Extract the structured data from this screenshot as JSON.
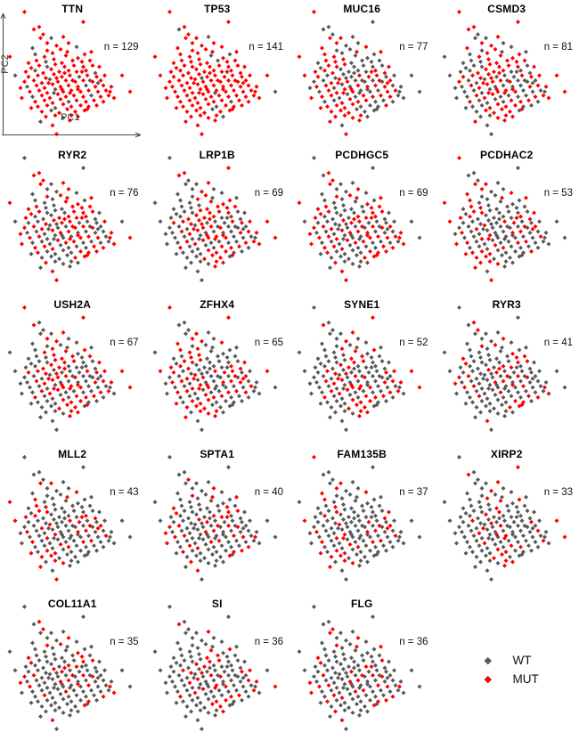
{
  "chart_data": {
    "type": "scatter",
    "xlabel": "PC1",
    "ylabel": "PC2",
    "grid": "off",
    "marker": "diamond",
    "legend_position": "bottom-right",
    "legend": [
      {
        "label": "WT",
        "color": "#595959"
      },
      {
        "label": "MUT",
        "color": "#FF0000"
      }
    ],
    "mut_stride": 7,
    "panels": [
      {
        "gene": "TTN",
        "n": 129,
        "n_label": "n = 129",
        "mut_seed": 0
      },
      {
        "gene": "TP53",
        "n": 141,
        "n_label": "n = 141",
        "mut_seed": 37
      },
      {
        "gene": "MUC16",
        "n": 77,
        "n_label": "n = 77",
        "mut_seed": 74
      },
      {
        "gene": "CSMD3",
        "n": 81,
        "n_label": "n = 81",
        "mut_seed": 111
      },
      {
        "gene": "RYR2",
        "n": 76,
        "n_label": "n = 76",
        "mut_seed": 148
      },
      {
        "gene": "LRP1B",
        "n": 69,
        "n_label": "n = 69",
        "mut_seed": 35
      },
      {
        "gene": "PCDHGC5",
        "n": 69,
        "n_label": "n = 69",
        "mut_seed": 72
      },
      {
        "gene": "PCDHAC2",
        "n": 53,
        "n_label": "n = 53",
        "mut_seed": 109
      },
      {
        "gene": "USH2A",
        "n": 67,
        "n_label": "n = 67",
        "mut_seed": 146
      },
      {
        "gene": "ZFHX4",
        "n": 65,
        "n_label": "n = 65",
        "mut_seed": 33
      },
      {
        "gene": "SYNE1",
        "n": 52,
        "n_label": "n = 52",
        "mut_seed": 70
      },
      {
        "gene": "RYR3",
        "n": 41,
        "n_label": "n = 41",
        "mut_seed": 107
      },
      {
        "gene": "MLL2",
        "n": 43,
        "n_label": "n = 43",
        "mut_seed": 144
      },
      {
        "gene": "SPTA1",
        "n": 40,
        "n_label": "n = 40",
        "mut_seed": 31
      },
      {
        "gene": "FAM135B",
        "n": 37,
        "n_label": "n = 37",
        "mut_seed": 68
      },
      {
        "gene": "XIRP2",
        "n": 33,
        "n_label": "n = 33",
        "mut_seed": 105
      },
      {
        "gene": "COL11A1",
        "n": 35,
        "n_label": "n = 35",
        "mut_seed": 142
      },
      {
        "gene": "SI",
        "n": 36,
        "n_label": "n = 36",
        "mut_seed": 29
      },
      {
        "gene": "FLG",
        "n": 36,
        "n_label": "n = 36",
        "mut_seed": 66
      }
    ],
    "points": [
      [
        0.13,
        0.01
      ],
      [
        0.57,
        0.09
      ],
      [
        0.2,
        0.15
      ],
      [
        0.24,
        0.13
      ],
      [
        0.27,
        0.19
      ],
      [
        0.25,
        0.22
      ],
      [
        0.33,
        0.22
      ],
      [
        0.3,
        0.26
      ],
      [
        0.37,
        0.28
      ],
      [
        0.42,
        0.21
      ],
      [
        0.4,
        0.31
      ],
      [
        0.46,
        0.26
      ],
      [
        0.02,
        0.37
      ],
      [
        0.06,
        0.52
      ],
      [
        0.69,
        0.45
      ],
      [
        0.86,
        0.52
      ],
      [
        0.92,
        0.65
      ],
      [
        0.8,
        0.7
      ],
      [
        0.34,
        0.92
      ],
      [
        0.37,
        0.99
      ],
      [
        0.21,
        0.35
      ],
      [
        0.28,
        0.37
      ],
      [
        0.34,
        0.34
      ],
      [
        0.44,
        0.36
      ],
      [
        0.53,
        0.38
      ],
      [
        0.16,
        0.42
      ],
      [
        0.22,
        0.4
      ],
      [
        0.29,
        0.41
      ],
      [
        0.35,
        0.39
      ],
      [
        0.41,
        0.42
      ],
      [
        0.49,
        0.4
      ],
      [
        0.56,
        0.41
      ],
      [
        0.18,
        0.46
      ],
      [
        0.24,
        0.44
      ],
      [
        0.3,
        0.45
      ],
      [
        0.36,
        0.43
      ],
      [
        0.43,
        0.45
      ],
      [
        0.5,
        0.44
      ],
      [
        0.57,
        0.45
      ],
      [
        0.64,
        0.44
      ],
      [
        0.14,
        0.49
      ],
      [
        0.21,
        0.48
      ],
      [
        0.27,
        0.5
      ],
      [
        0.33,
        0.47
      ],
      [
        0.39,
        0.49
      ],
      [
        0.46,
        0.48
      ],
      [
        0.52,
        0.49
      ],
      [
        0.59,
        0.48
      ],
      [
        0.66,
        0.5
      ],
      [
        0.16,
        0.53
      ],
      [
        0.23,
        0.52
      ],
      [
        0.29,
        0.54
      ],
      [
        0.35,
        0.51
      ],
      [
        0.41,
        0.53
      ],
      [
        0.47,
        0.52
      ],
      [
        0.54,
        0.53
      ],
      [
        0.6,
        0.52
      ],
      [
        0.67,
        0.53
      ],
      [
        0.73,
        0.52
      ],
      [
        0.13,
        0.57
      ],
      [
        0.2,
        0.56
      ],
      [
        0.26,
        0.58
      ],
      [
        0.32,
        0.55
      ],
      [
        0.38,
        0.57
      ],
      [
        0.44,
        0.56
      ],
      [
        0.51,
        0.57
      ],
      [
        0.57,
        0.56
      ],
      [
        0.64,
        0.57
      ],
      [
        0.7,
        0.56
      ],
      [
        0.15,
        0.61
      ],
      [
        0.22,
        0.6
      ],
      [
        0.28,
        0.62
      ],
      [
        0.34,
        0.59
      ],
      [
        0.4,
        0.61
      ],
      [
        0.46,
        0.6
      ],
      [
        0.53,
        0.61
      ],
      [
        0.59,
        0.6
      ],
      [
        0.66,
        0.61
      ],
      [
        0.72,
        0.6
      ],
      [
        0.78,
        0.61
      ],
      [
        0.17,
        0.65
      ],
      [
        0.24,
        0.64
      ],
      [
        0.3,
        0.66
      ],
      [
        0.36,
        0.63
      ],
      [
        0.42,
        0.65
      ],
      [
        0.48,
        0.64
      ],
      [
        0.55,
        0.65
      ],
      [
        0.61,
        0.64
      ],
      [
        0.68,
        0.65
      ],
      [
        0.74,
        0.64
      ],
      [
        0.19,
        0.69
      ],
      [
        0.26,
        0.68
      ],
      [
        0.32,
        0.7
      ],
      [
        0.38,
        0.67
      ],
      [
        0.44,
        0.69
      ],
      [
        0.5,
        0.68
      ],
      [
        0.57,
        0.69
      ],
      [
        0.63,
        0.68
      ],
      [
        0.7,
        0.69
      ],
      [
        0.76,
        0.68
      ],
      [
        0.21,
        0.73
      ],
      [
        0.28,
        0.72
      ],
      [
        0.34,
        0.74
      ],
      [
        0.4,
        0.71
      ],
      [
        0.46,
        0.73
      ],
      [
        0.52,
        0.72
      ],
      [
        0.59,
        0.73
      ],
      [
        0.65,
        0.72
      ],
      [
        0.72,
        0.73
      ],
      [
        0.23,
        0.77
      ],
      [
        0.3,
        0.76
      ],
      [
        0.36,
        0.78
      ],
      [
        0.42,
        0.75
      ],
      [
        0.48,
        0.77
      ],
      [
        0.55,
        0.76
      ],
      [
        0.61,
        0.77
      ],
      [
        0.67,
        0.76
      ],
      [
        0.26,
        0.81
      ],
      [
        0.33,
        0.8
      ],
      [
        0.39,
        0.82
      ],
      [
        0.45,
        0.79
      ],
      [
        0.51,
        0.81
      ],
      [
        0.58,
        0.8
      ],
      [
        0.29,
        0.85
      ],
      [
        0.36,
        0.84
      ],
      [
        0.42,
        0.86
      ],
      [
        0.48,
        0.84
      ],
      [
        0.58,
        0.35
      ],
      [
        0.62,
        0.4
      ],
      [
        0.1,
        0.62
      ],
      [
        0.11,
        0.7
      ],
      [
        0.18,
        0.78
      ],
      [
        0.25,
        0.89
      ],
      [
        0.47,
        0.88
      ],
      [
        0.53,
        0.85
      ],
      [
        0.6,
        0.79
      ],
      [
        0.77,
        0.65
      ],
      [
        0.63,
        0.33
      ],
      [
        0.52,
        0.29
      ],
      [
        0.19,
        0.3
      ],
      [
        0.31,
        0.58
      ],
      [
        0.37,
        0.54
      ],
      [
        0.43,
        0.5
      ],
      [
        0.49,
        0.56
      ],
      [
        0.56,
        0.49
      ],
      [
        0.62,
        0.56
      ],
      [
        0.35,
        0.66
      ],
      [
        0.41,
        0.63
      ],
      [
        0.47,
        0.66
      ],
      [
        0.53,
        0.63
      ],
      [
        0.3,
        0.32
      ],
      [
        0.45,
        0.33
      ],
      [
        0.68,
        0.58
      ]
    ]
  }
}
